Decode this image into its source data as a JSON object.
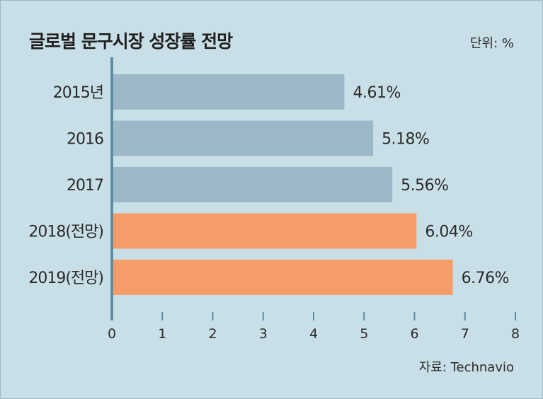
{
  "title": "글로벌 문구시장 성장률 전망",
  "unit_label": "단위: %",
  "source_label": "자료: Technavio",
  "colors": {
    "background": "#c9dfe8",
    "actual_bar": "#9db8c6",
    "forecast_bar": "#f59e6a",
    "axis": "#5f8ea3"
  },
  "chart_data": {
    "type": "bar",
    "orientation": "horizontal",
    "title": "글로벌 문구시장 성장률 전망",
    "xlabel": "",
    "ylabel": "",
    "unit": "%",
    "categories": [
      "2015년",
      "2016",
      "2017",
      "2018(전망)",
      "2019(전망)"
    ],
    "values": [
      4.61,
      5.18,
      5.56,
      6.04,
      6.76
    ],
    "value_labels": [
      "4.61%",
      "5.18%",
      "5.56%",
      "6.04%",
      "6.76%"
    ],
    "forecast": [
      false,
      false,
      false,
      true,
      true
    ],
    "xlim": [
      0,
      8
    ],
    "xticks": [
      "0",
      "1",
      "2",
      "3",
      "4",
      "5",
      "6",
      "7",
      "8"
    ],
    "grid": false,
    "legend": "none"
  }
}
